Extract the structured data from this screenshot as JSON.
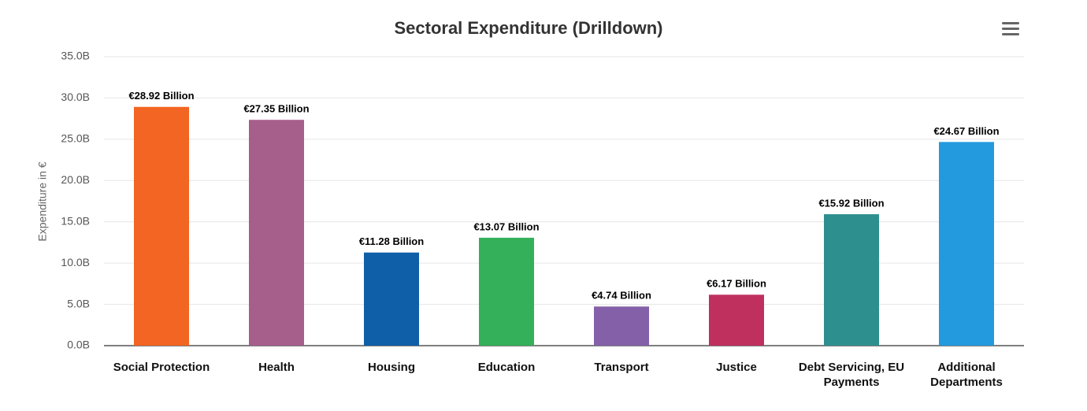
{
  "chart_data": {
    "type": "bar",
    "title": "Sectoral Expenditure (Drilldown)",
    "y_axis_label": "Expenditure in €",
    "categories": [
      "Social Protection",
      "Health",
      "Housing",
      "Education",
      "Transport",
      "Justice",
      "Debt Servicing, EU Payments",
      "Additional Departments"
    ],
    "values": [
      28.92,
      27.35,
      11.28,
      13.07,
      4.74,
      6.17,
      15.92,
      24.67
    ],
    "value_labels": [
      "€28.92 Billion",
      "€27.35 Billion",
      "€11.28 Billion",
      "€13.07 Billion",
      "€4.74 Billion",
      "€6.17 Billion",
      "€15.92 Billion",
      "€24.67 Billion"
    ],
    "colors": [
      "#f26522",
      "#a65e8b",
      "#0f5fa8",
      "#34b05a",
      "#8460a8",
      "#c0305f",
      "#2e8f8f",
      "#249ade"
    ],
    "ylim": [
      0,
      35
    ],
    "yticks": [
      {
        "value": 0,
        "label": "0.0B"
      },
      {
        "value": 5,
        "label": "5.0B"
      },
      {
        "value": 10,
        "label": "10.0B"
      },
      {
        "value": 15,
        "label": "15.0B"
      },
      {
        "value": 20,
        "label": "20.0B"
      },
      {
        "value": 25,
        "label": "25.0B"
      },
      {
        "value": 30,
        "label": "30.0B"
      },
      {
        "value": 35,
        "label": "35.0B"
      }
    ],
    "grid": true
  }
}
